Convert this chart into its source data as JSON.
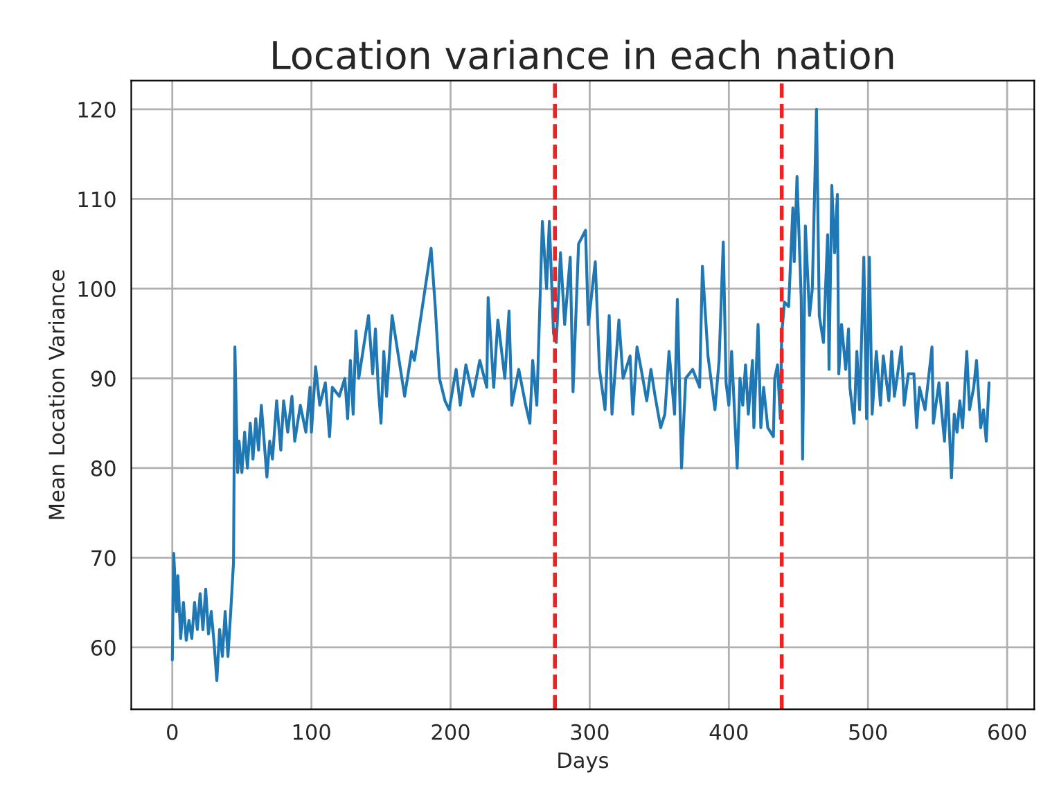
{
  "chart_data": {
    "type": "line",
    "title": "Location variance in each nation",
    "xlabel": "Days",
    "ylabel": "Mean Location Variance",
    "x": [
      0,
      1,
      3,
      4,
      6,
      8,
      10,
      12,
      14,
      16,
      18,
      20,
      22,
      24,
      26,
      28,
      30,
      32,
      34,
      36,
      38,
      40,
      42,
      44,
      45,
      46,
      47,
      48,
      50,
      52,
      54,
      56,
      58,
      60,
      62,
      64,
      68,
      70,
      72,
      75,
      78,
      80,
      83,
      86,
      88,
      92,
      96,
      99,
      100,
      103,
      106,
      110,
      113,
      115,
      120,
      124,
      126,
      128,
      130,
      132,
      134,
      137,
      141,
      144,
      146,
      148,
      150,
      152,
      154,
      158,
      167,
      172,
      174,
      186,
      189,
      192,
      196,
      199,
      204,
      207,
      211,
      216,
      221,
      226,
      227,
      231,
      234,
      239,
      242,
      244,
      249,
      254,
      257,
      259,
      262,
      266,
      269,
      271,
      274,
      276,
      279,
      282,
      286,
      288,
      292,
      297,
      299,
      304,
      307,
      311,
      314,
      316,
      321,
      324,
      329,
      331,
      334,
      337,
      341,
      344,
      347,
      351,
      354,
      357,
      361,
      363,
      366,
      369,
      374,
      379,
      381,
      385,
      390,
      393,
      396,
      398,
      400,
      402,
      406,
      408,
      410,
      412,
      414,
      417,
      418,
      421,
      423,
      425,
      428,
      432,
      433,
      435,
      437,
      438,
      440,
      443,
      446,
      447,
      449,
      452,
      453,
      455,
      458,
      460,
      463,
      465,
      468,
      471,
      472,
      474,
      476,
      478,
      479,
      481,
      484,
      486,
      487,
      490,
      492,
      494,
      497,
      499,
      501,
      503,
      506,
      509,
      511,
      515,
      517,
      519,
      524,
      526,
      529,
      533,
      535,
      537,
      541,
      546,
      547,
      551,
      555,
      557,
      560,
      562,
      564,
      566,
      568,
      571,
      573,
      576,
      578,
      581,
      583,
      585,
      587
    ],
    "values": [
      58.6,
      70.5,
      64,
      68,
      61,
      65,
      60.8,
      63,
      61,
      65,
      62,
      66,
      62,
      66.5,
      61.5,
      64,
      60.5,
      56.3,
      62,
      59,
      64,
      59,
      64,
      69.5,
      93.5,
      86,
      79.5,
      83,
      79.5,
      84,
      80,
      85,
      81,
      85.5,
      82,
      87,
      79,
      83,
      81,
      87.5,
      82,
      87.5,
      84,
      88,
      83,
      87,
      84,
      89,
      84,
      91.3,
      87,
      89.5,
      83.5,
      89,
      88,
      90,
      85.5,
      92,
      86,
      95.3,
      90,
      93,
      97,
      90.5,
      95.5,
      89,
      85,
      93,
      88,
      97,
      88,
      93,
      92,
      104.5,
      98,
      90,
      87.5,
      86.5,
      91,
      87,
      91.5,
      88,
      92,
      89,
      99,
      89,
      96.5,
      90,
      97.5,
      87,
      91,
      87,
      85,
      92,
      87,
      107.5,
      100,
      107.5,
      95,
      94,
      104,
      96,
      103.5,
      88.5,
      105,
      106.5,
      96,
      103,
      91,
      86.5,
      97,
      86,
      96.5,
      90,
      92.5,
      86,
      93.5,
      91,
      87.5,
      91,
      88,
      84.5,
      86,
      93,
      86,
      98.8,
      80,
      90,
      91,
      89,
      102.5,
      92.5,
      86.5,
      92,
      105.2,
      89.5,
      87,
      93,
      80,
      90,
      87,
      91.5,
      86,
      92,
      84.5,
      96,
      84.5,
      89,
      84.5,
      83.5,
      90,
      91.5,
      85.5,
      95,
      98.5,
      98,
      109,
      103,
      112.5,
      99,
      81,
      107,
      97,
      100,
      120,
      97,
      94,
      106,
      91,
      111.5,
      104,
      110.5,
      90.5,
      96,
      91,
      95.5,
      89,
      85,
      93,
      86.5,
      103.5,
      85.5,
      103.5,
      86,
      93,
      87,
      92.5,
      87.5,
      93,
      88,
      93.5,
      87,
      90.5,
      90.5,
      84.5,
      89,
      86.5,
      93.5,
      85,
      89.5,
      83,
      89.5,
      78.9,
      86,
      84,
      87.5,
      84.5,
      93,
      86.5,
      89,
      92,
      84.5,
      86.5,
      83,
      89.5
    ],
    "color": "#1f77b4",
    "xlim": [
      -29.5,
      619.5
    ],
    "ylim": [
      53.1,
      123.2
    ],
    "xticks": [
      0,
      100,
      200,
      300,
      400,
      500,
      600
    ],
    "yticks": [
      60,
      70,
      80,
      90,
      100,
      110,
      120
    ],
    "grid": true,
    "ref_lines": [
      {
        "axis": "x",
        "value": 275,
        "color": "#ee2222",
        "line_style": "dashed"
      },
      {
        "axis": "x",
        "value": 438,
        "color": "#ee2222",
        "line_style": "dashed"
      }
    ]
  }
}
